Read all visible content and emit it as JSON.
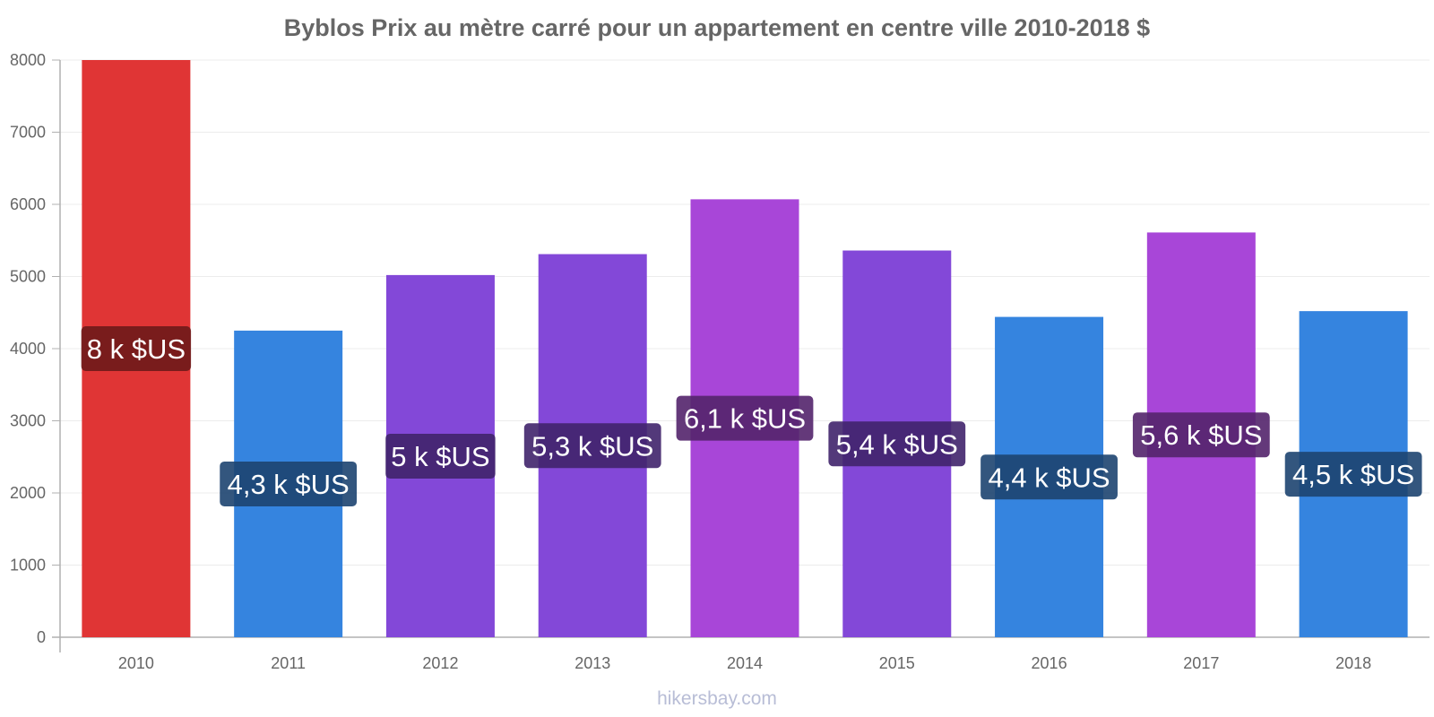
{
  "chart_data": {
    "type": "bar",
    "title": "Byblos Prix au mètre carré pour un appartement en centre ville 2010-2018 $",
    "xlabel": "",
    "ylabel": "",
    "ylim": [
      0,
      8000
    ],
    "yticks": [
      0,
      1000,
      2000,
      3000,
      4000,
      5000,
      6000,
      7000,
      8000
    ],
    "grid": true,
    "legend": "none",
    "categories": [
      "2010",
      "2011",
      "2012",
      "2013",
      "2014",
      "2015",
      "2016",
      "2017",
      "2018"
    ],
    "values": [
      8000,
      4250,
      5020,
      5310,
      6070,
      5360,
      4440,
      5610,
      4520
    ],
    "data_labels": [
      "8 k $US",
      "4,3 k $US",
      "5 k $US",
      "5,3 k $US",
      "6,1 k $US",
      "5,4 k $US",
      "4,4 k $US",
      "5,6 k $US",
      "4,5 k $US"
    ],
    "bar_colors": [
      "#e03535",
      "#3584df",
      "#8348d8",
      "#8348d8",
      "#a846d8",
      "#8348d8",
      "#3584df",
      "#a846d8",
      "#3584df"
    ],
    "label_bg_colors": [
      "#6e1a1a",
      "#1d4470",
      "#40246b",
      "#40246b",
      "#53236b",
      "#40246b",
      "#1d4470",
      "#53236b",
      "#1d4470"
    ]
  },
  "watermark": "hikersbay.com"
}
